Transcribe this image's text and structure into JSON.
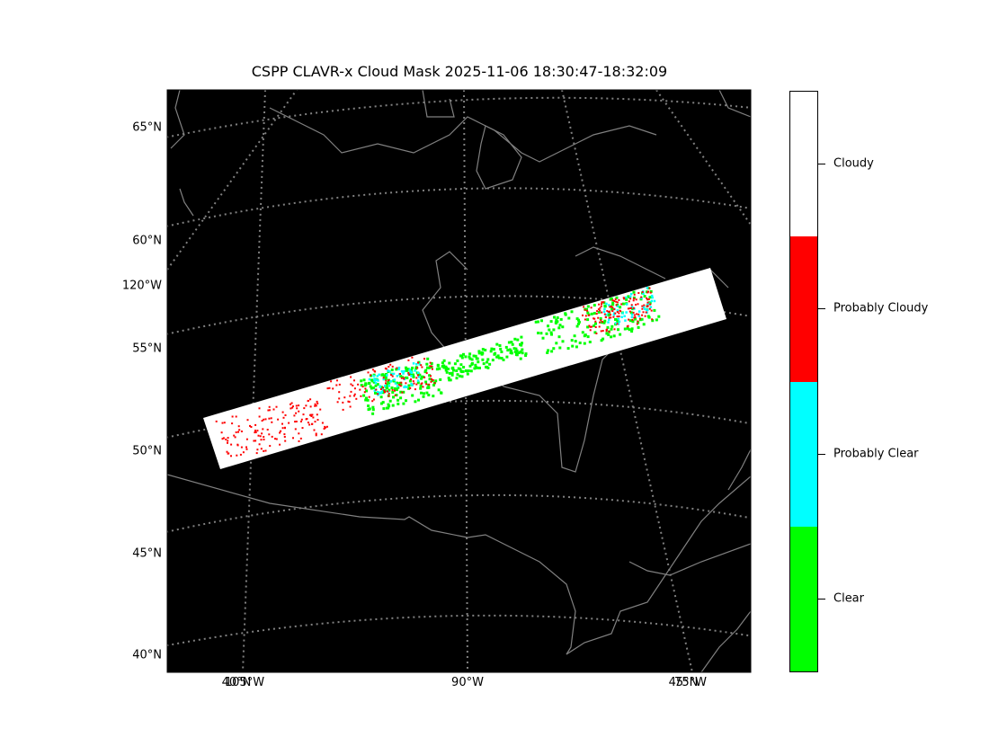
{
  "chart_data": {
    "type": "heatmap",
    "title": "CSPP CLAVR-x Cloud Mask 2025-11-06 18:30:47-18:32:09",
    "categories": [
      "Clear",
      "Probably Clear",
      "Probably Cloudy",
      "Cloudy"
    ],
    "category_colors": [
      "#00ff00",
      "#00ffff",
      "#ff0000",
      "#ffffff"
    ],
    "background_color": "#000000",
    "coastline_color": "#808080",
    "gridline_color": "#808080",
    "lat_ticks": [
      "65°N",
      "60°N",
      "120°W",
      "55°N",
      "50°N",
      "45°N",
      "40°N"
    ],
    "lon_ticks": [
      "105°W",
      "40°N",
      "90°W",
      "75°W",
      "45°N"
    ],
    "colorbar_ticks": [
      "Clear",
      "Probably Clear",
      "Probably Cloudy",
      "Cloudy"
    ],
    "swath_dominant_category": "Cloudy",
    "legend_placement": "right",
    "grid": true
  }
}
